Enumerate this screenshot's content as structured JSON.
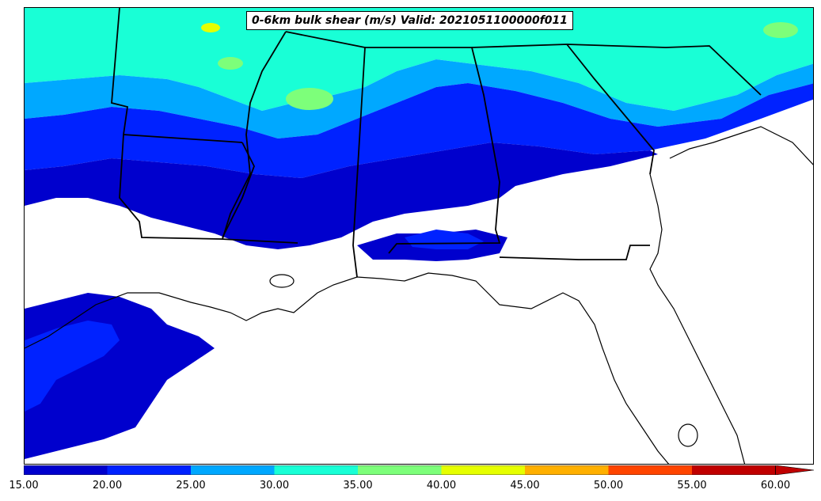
{
  "title": "0-6km bulk shear (m/s) Valid: 2021051100000f011",
  "colorbar": {
    "levels": [
      "15.00",
      "20.00",
      "25.00",
      "30.00",
      "35.00",
      "40.00",
      "45.00",
      "50.00",
      "55.00",
      "60.00"
    ],
    "colors": [
      "#0000cd",
      "#0022ff",
      "#00a8ff",
      "#19ffd6",
      "#7dff7a",
      "#e6ff00",
      "#ffb000",
      "#ff4500",
      "#c00000"
    ],
    "extend": "max"
  },
  "legend_colors": {
    "c15": "#0000cd",
    "c20": "#0022ff",
    "c25": "#00a8ff",
    "c30": "#19ffd6",
    "c35": "#7dff7a",
    "c40": "#e6ff00"
  }
}
